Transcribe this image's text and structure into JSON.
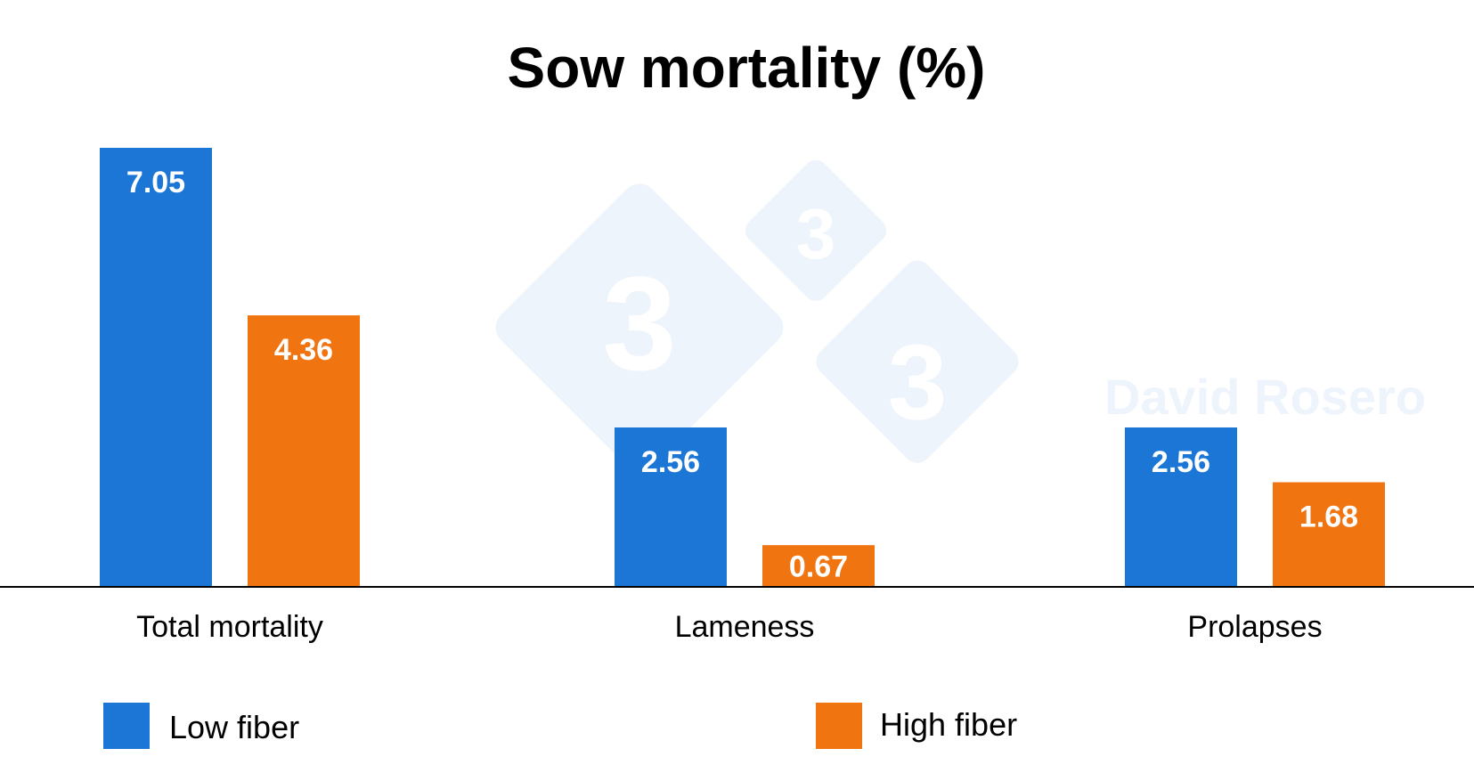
{
  "colors": {
    "low_fiber": "#1b76d6",
    "high_fiber": "#f07410",
    "axis": "#000000",
    "watermark": "#eef4fb",
    "value_label": "#ffffff"
  },
  "watermark": {
    "text": "David Rosero",
    "icon_glyph": "3"
  },
  "chart_data": {
    "type": "bar",
    "title": "Sow mortality (%)",
    "xlabel": "",
    "ylabel": "",
    "categories": [
      "Total mortality",
      "Lameness",
      "Prolapses"
    ],
    "series": [
      {
        "name": "Low fiber",
        "values": [
          7.05,
          2.56,
          2.56
        ],
        "color": "#1b76d6"
      },
      {
        "name": "High fiber",
        "values": [
          4.36,
          0.67,
          1.68
        ],
        "color": "#f07410"
      }
    ],
    "ylim": [
      0,
      7.05
    ],
    "data_labels": true,
    "grid": false,
    "y_axis_visible": false,
    "legend_position": "bottom"
  }
}
